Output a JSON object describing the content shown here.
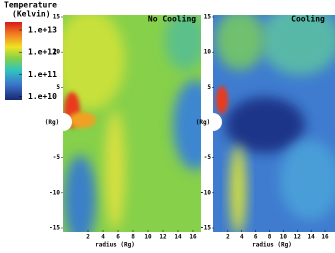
{
  "chart_data": {
    "type": "heatmap",
    "colorbar": {
      "label": "Temperature",
      "unit": "(Kelvin)",
      "log": true,
      "clim": [
        7000000000,
        23000000000000
      ],
      "ticks": [
        {
          "value": 10000000000000,
          "label": "1.e+13"
        },
        {
          "value": 1000000000000,
          "label": "1.e+12"
        },
        {
          "value": 100000000000,
          "label": "1.e+11"
        },
        {
          "value": 10000000000,
          "label": "1.e+10"
        }
      ]
    },
    "panels": [
      {
        "title": "No Cooling",
        "xlabel": "radius (Rg)",
        "ylabel": "(Rg)",
        "xlim": [
          0,
          16
        ],
        "ylim": [
          -15,
          15
        ],
        "xticks": [
          2,
          4,
          6,
          8,
          10,
          12,
          14,
          16
        ],
        "yticks": [
          15,
          10,
          5,
          -5,
          -10,
          -15
        ]
      },
      {
        "title": "Cooling",
        "xlabel": "radius (Rg)",
        "ylabel": "(Rg)",
        "xlim": [
          0,
          16
        ],
        "ylim": [
          -15,
          15
        ],
        "xticks": [
          2,
          4,
          6,
          8,
          10,
          12,
          14,
          16
        ],
        "yticks": [
          15,
          10,
          5,
          -5,
          -10,
          -15
        ]
      }
    ]
  }
}
